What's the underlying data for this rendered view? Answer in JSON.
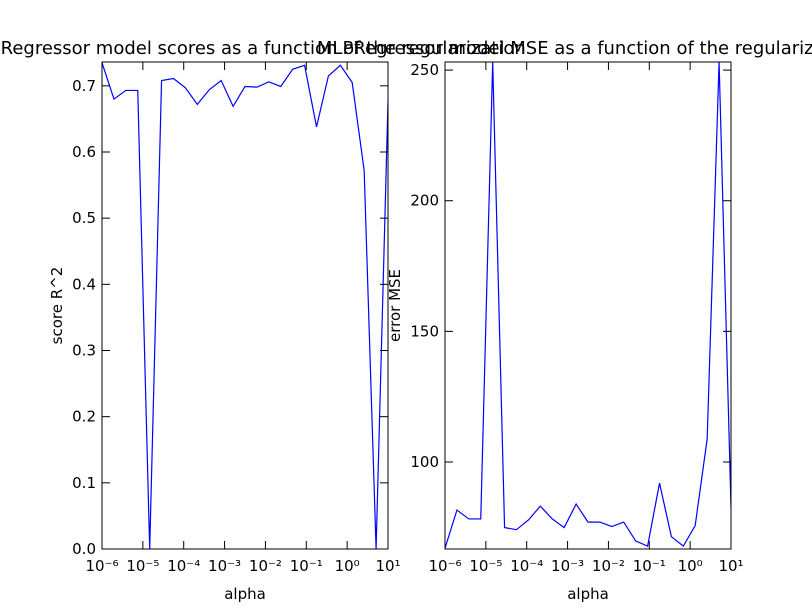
{
  "chart_data": [
    {
      "type": "line",
      "title": "MLPRegressor model scores as a function of the regularization",
      "xlabel": "alpha",
      "ylabel": "score R^2",
      "xscale": "log",
      "color": "#0000ff",
      "x": [
        1e-06,
        1.96e-06,
        3.83e-06,
        7.5e-06,
        1.47e-05,
        2.87e-05,
        5.62e-05,
        0.00011,
        0.000215,
        0.000422,
        0.000825,
        0.00162,
        0.00316,
        0.00619,
        0.0121,
        0.0237,
        0.0464,
        0.0909,
        0.178,
        0.348,
        0.681,
        1.33,
        2.61,
        5.11,
        10
      ],
      "values": [
        0.735,
        0.68,
        0.693,
        0.693,
        0.0,
        0.708,
        0.711,
        0.697,
        0.672,
        0.694,
        0.708,
        0.669,
        0.699,
        0.698,
        0.706,
        0.699,
        0.725,
        0.731,
        0.638,
        0.715,
        0.731,
        0.705,
        0.572,
        0.0,
        0.676
      ],
      "xlim": [
        1e-06,
        10
      ],
      "xticks": [
        {
          "value": 1e-06,
          "label": "10⁻⁶"
        },
        {
          "value": 1e-05,
          "label": "10⁻⁵"
        },
        {
          "value": 0.0001,
          "label": "10⁻⁴"
        },
        {
          "value": 0.001,
          "label": "10⁻³"
        },
        {
          "value": 0.01,
          "label": "10⁻²"
        },
        {
          "value": 0.1,
          "label": "10⁻¹"
        },
        {
          "value": 1,
          "label": "10⁰"
        },
        {
          "value": 10,
          "label": "10¹"
        }
      ],
      "ylim": [
        0,
        0.736
      ],
      "yticks": [
        {
          "value": 0,
          "label": "0.0"
        },
        0.1,
        0.2,
        0.3,
        0.4,
        0.5,
        0.6,
        0.7
      ]
    },
    {
      "type": "line",
      "title": "MLPRegressor model MSE as a function of the regularization",
      "xlabel": "alpha",
      "ylabel": "error MSE",
      "xscale": "log",
      "color": "#0000ff",
      "x": [
        1e-06,
        1.96e-06,
        3.83e-06,
        7.5e-06,
        1.47e-05,
        2.87e-05,
        5.62e-05,
        0.00011,
        0.000215,
        0.000422,
        0.000825,
        0.00162,
        0.00316,
        0.00619,
        0.0121,
        0.0237,
        0.0464,
        0.0909,
        0.178,
        0.348,
        0.681,
        1.33,
        2.61,
        5.11,
        10
      ],
      "values": [
        67,
        81.6,
        78.2,
        78.2,
        253,
        74.9,
        74.1,
        77.8,
        83.1,
        78.2,
        74.9,
        83.9,
        77,
        77,
        75.3,
        77,
        69.8,
        67.8,
        91.9,
        71.4,
        67.8,
        75.7,
        108.8,
        253,
        82.7
      ],
      "xlim": [
        1e-06,
        10
      ],
      "xticks": [
        {
          "value": 1e-06,
          "label": "10⁻⁶"
        },
        {
          "value": 1e-05,
          "label": "10⁻⁵"
        },
        {
          "value": 0.0001,
          "label": "10⁻⁴"
        },
        {
          "value": 0.001,
          "label": "10⁻³"
        },
        {
          "value": 0.01,
          "label": "10⁻²"
        },
        {
          "value": 0.1,
          "label": "10⁻¹"
        },
        {
          "value": 1,
          "label": "10⁰"
        },
        {
          "value": 10,
          "label": "10¹"
        }
      ],
      "ylim": [
        66.7,
        253.1
      ],
      "yticks": [
        100,
        150,
        200,
        250
      ]
    }
  ]
}
